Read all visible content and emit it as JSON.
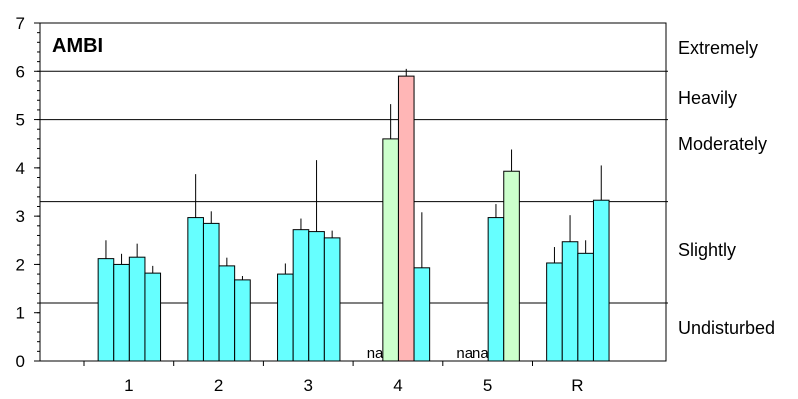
{
  "chart_data": {
    "type": "bar",
    "title": "AMBI",
    "xlabel": "",
    "ylabel": "",
    "ylim": [
      0,
      7
    ],
    "yticks": [
      0,
      1,
      2,
      3,
      4,
      5,
      6,
      7
    ],
    "categories": [
      "1",
      "2",
      "3",
      "4",
      "5",
      "R"
    ],
    "thresholds": [
      1.2,
      3.3,
      5.0,
      6.0
    ],
    "bands": [
      "Extremely",
      "Heavily",
      "Moderately",
      "Slightly",
      "Undisturbed"
    ],
    "colors": {
      "cyan": "#66FFFF",
      "green": "#CCFFCC",
      "pink": "#FFB6B6"
    },
    "groups": [
      {
        "category": "1",
        "bars": [
          {
            "value": 2.12,
            "err": 0.38,
            "color": "cyan"
          },
          {
            "value": 2.0,
            "err": 0.22,
            "color": "cyan"
          },
          {
            "value": 2.15,
            "err": 0.28,
            "color": "cyan"
          },
          {
            "value": 1.82,
            "err": 0.15,
            "color": "cyan"
          }
        ]
      },
      {
        "category": "2",
        "bars": [
          {
            "value": 2.97,
            "err": 0.9,
            "color": "cyan"
          },
          {
            "value": 2.85,
            "err": 0.25,
            "color": "cyan"
          },
          {
            "value": 1.97,
            "err": 0.17,
            "color": "cyan"
          },
          {
            "value": 1.68,
            "err": 0.08,
            "color": "cyan"
          }
        ]
      },
      {
        "category": "3",
        "bars": [
          {
            "value": 1.8,
            "err": 0.22,
            "color": "cyan"
          },
          {
            "value": 2.72,
            "err": 0.23,
            "color": "cyan"
          },
          {
            "value": 2.68,
            "err": 1.48,
            "color": "cyan"
          },
          {
            "value": 2.55,
            "err": 0.15,
            "color": "cyan"
          }
        ]
      },
      {
        "category": "4",
        "bars": [
          {
            "value": null,
            "label": "na"
          },
          {
            "value": 4.6,
            "err": 0.72,
            "color": "green"
          },
          {
            "value": 5.9,
            "err": 0.15,
            "color": "pink"
          },
          {
            "value": 1.93,
            "err": 1.15,
            "color": "cyan"
          }
        ]
      },
      {
        "category": "5",
        "bars": [
          {
            "value": null,
            "label": "na"
          },
          {
            "value": null,
            "label": "na"
          },
          {
            "value": 2.97,
            "err": 0.28,
            "color": "cyan"
          },
          {
            "value": 3.93,
            "err": 0.45,
            "color": "green"
          }
        ]
      },
      {
        "category": "R",
        "bars": [
          {
            "value": 2.03,
            "err": 0.33,
            "color": "cyan"
          },
          {
            "value": 2.47,
            "err": 0.55,
            "color": "cyan"
          },
          {
            "value": 2.23,
            "err": 0.27,
            "color": "cyan"
          },
          {
            "value": 3.33,
            "err": 0.72,
            "color": "cyan"
          }
        ]
      }
    ]
  }
}
